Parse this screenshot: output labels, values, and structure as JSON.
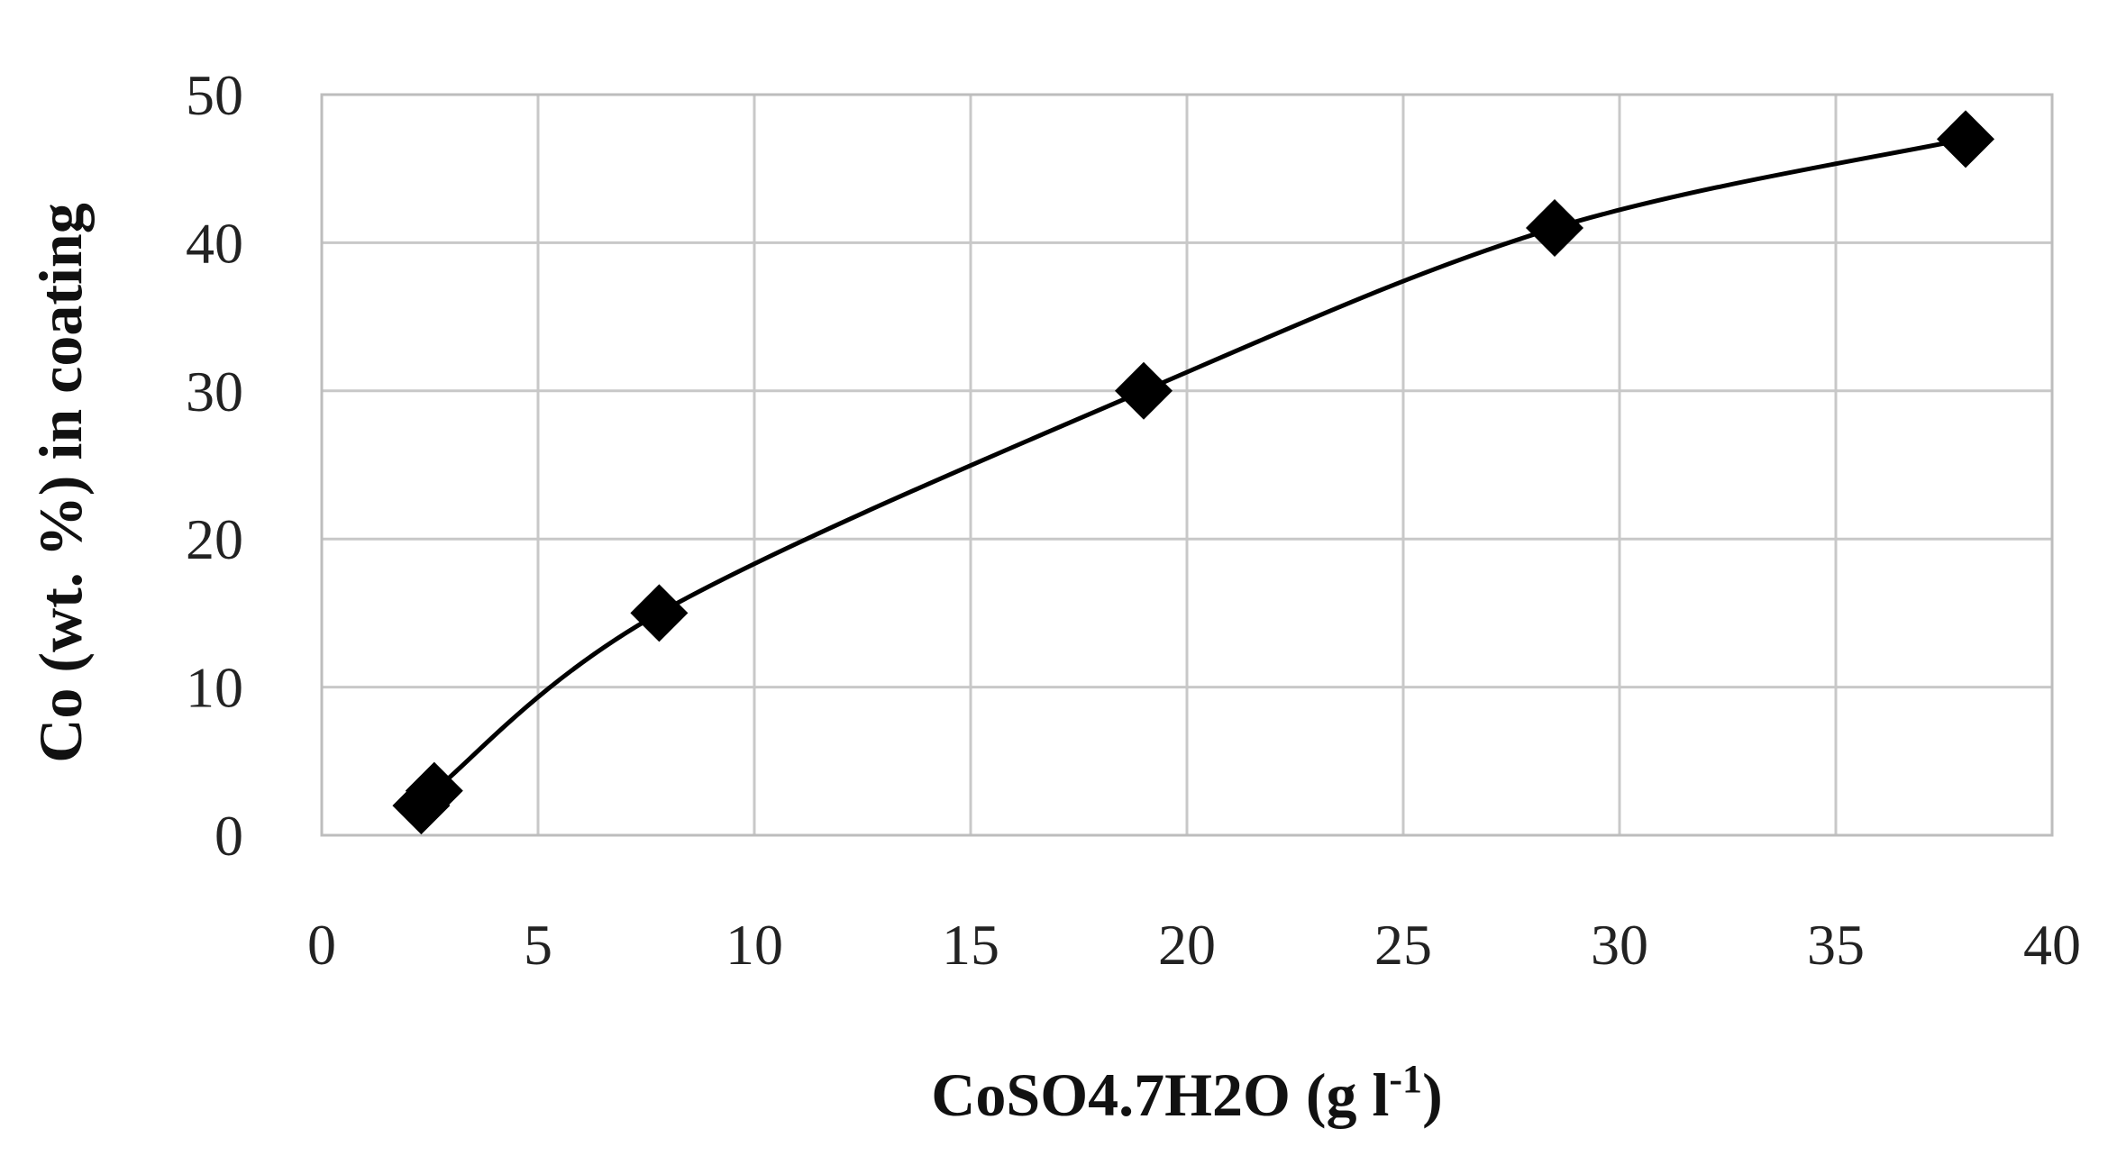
{
  "chart_data": {
    "type": "scatter",
    "title": "",
    "xlabel": "CoSO4.7H2O (g l",
    "xlabel_superscript": "-1",
    "xlabel_suffix": ")",
    "ylabel": "Co (wt. %) in coating",
    "xlim": [
      0,
      40
    ],
    "ylim": [
      0,
      50
    ],
    "xticks": [
      0,
      5,
      10,
      15,
      20,
      25,
      30,
      35,
      40
    ],
    "yticks": [
      0,
      10,
      20,
      30,
      40,
      50
    ],
    "grid": true,
    "legend": "none",
    "series": [
      {
        "marker": "diamond",
        "line": "smooth",
        "color": "#000000",
        "points": [
          {
            "x": 2.3,
            "y": 2
          },
          {
            "x": 2.6,
            "y": 3
          },
          {
            "x": 7.8,
            "y": 15
          },
          {
            "x": 19,
            "y": 30
          },
          {
            "x": 28.5,
            "y": 41
          },
          {
            "x": 38,
            "y": 47
          }
        ]
      }
    ]
  }
}
